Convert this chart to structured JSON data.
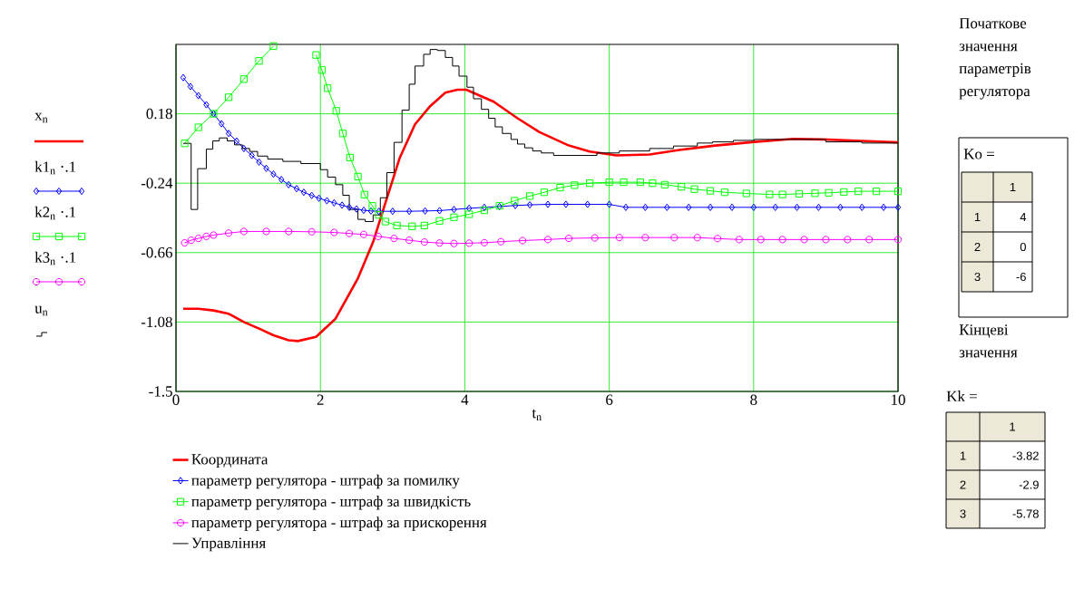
{
  "chart_data": [
    {
      "type": "line",
      "xlabel": "t$_{n}$",
      "xlim": [
        0,
        10
      ],
      "ylim": [
        -1.5,
        0.6
      ],
      "xticks": [
        0,
        2,
        4,
        6,
        8,
        10
      ],
      "yticks": [
        -1.5,
        -1.08,
        -0.66,
        -0.24,
        0.18
      ],
      "grid": true,
      "legend": "bottom",
      "annotations": [
        "x$_{n}$",
        "k1$_{n}$ ·.1",
        "k2$_{n}$ ·.1",
        "k3$_{n}$ ·.1",
        "u$_{n}$"
      ],
      "series": [
        {
          "name": "Координата",
          "color": "#ff0000",
          "marker": "none",
          "x": [
            0.1,
            0.31,
            0.52,
            0.73,
            0.94,
            1.15,
            1.35,
            1.56,
            1.69,
            1.94,
            2.21,
            2.52,
            2.73,
            2.94,
            3.1,
            3.31,
            3.52,
            3.73,
            3.9,
            4.02,
            4.4,
            4.73,
            5.03,
            5.44,
            5.73,
            6.1,
            6.56,
            6.97,
            7.47,
            8.01,
            8.55,
            8.96,
            9.5,
            10
          ],
          "values": [
            -1.0,
            -1.0,
            -1.01,
            -1.03,
            -1.08,
            -1.12,
            -1.16,
            -1.19,
            -1.195,
            -1.17,
            -1.06,
            -0.815,
            -0.596,
            -0.304,
            -0.085,
            0.116,
            0.226,
            0.308,
            0.326,
            0.326,
            0.253,
            0.153,
            0.07,
            -0.012,
            -0.048,
            -0.072,
            -0.066,
            -0.039,
            -0.012,
            0.01,
            0.028,
            0.025,
            0.016,
            0.007
          ]
        },
        {
          "name": "параметр регулятора - штраф за помилку",
          "color": "#0000ff",
          "marker": "diamond",
          "x": [
            0.1,
            0.2,
            0.31,
            0.42,
            0.52,
            0.63,
            0.73,
            0.84,
            0.94,
            1.05,
            1.15,
            1.25,
            1.35,
            1.46,
            1.56,
            1.67,
            1.77,
            1.88,
            1.98,
            2.09,
            2.19,
            2.3,
            2.4,
            2.5,
            2.6,
            2.7,
            2.81,
            3.0,
            3.23,
            3.45,
            3.65,
            3.85,
            4.06,
            4.27,
            4.48,
            4.7,
            4.9,
            5.15,
            5.4,
            5.7,
            6.0,
            6.23,
            6.5,
            6.8,
            7.1,
            7.4,
            7.7,
            8.0,
            8.3,
            8.6,
            8.9,
            9.2,
            9.5,
            9.8,
            10
          ],
          "values": [
            0.399,
            0.345,
            0.29,
            0.235,
            0.18,
            0.12,
            0.061,
            0.015,
            -0.03,
            -0.072,
            -0.112,
            -0.15,
            -0.185,
            -0.218,
            -0.249,
            -0.273,
            -0.295,
            -0.314,
            -0.331,
            -0.346,
            -0.359,
            -0.373,
            -0.386,
            -0.396,
            -0.404,
            -0.408,
            -0.41,
            -0.41,
            -0.41,
            -0.408,
            -0.406,
            -0.399,
            -0.392,
            -0.386,
            -0.381,
            -0.375,
            -0.371,
            -0.368,
            -0.368,
            -0.368,
            -0.368,
            -0.386,
            -0.386,
            -0.386,
            -0.386,
            -0.386,
            -0.386,
            -0.386,
            -0.386,
            -0.386,
            -0.386,
            -0.386,
            -0.386,
            -0.386,
            -0.386
          ]
        },
        {
          "name": "параметр регулятора - штраф за швидкість",
          "color": "#00ff00",
          "marker": "square",
          "x": [
            0.12,
            0.31,
            0.52,
            0.73,
            0.94,
            1.15,
            1.35,
            1.38,
            1.6,
            1.75,
            1.94,
            2.02,
            2.1,
            2.22,
            2.31,
            2.41,
            2.52,
            2.61,
            2.72,
            2.81,
            2.9,
            3.06,
            3.27,
            3.44,
            3.65,
            3.85,
            4.06,
            4.27,
            4.48,
            4.69,
            4.9,
            5.1,
            5.32,
            5.52,
            5.73,
            6.0,
            6.2,
            6.43,
            6.6,
            6.77,
            7.0,
            7.18,
            7.4,
            7.6,
            7.9,
            8.22,
            8.4,
            8.63,
            8.85,
            9.04,
            9.25,
            9.45,
            9.7,
            10
          ],
          "values": [
            0.001,
            0.098,
            0.18,
            0.28,
            0.39,
            0.5,
            0.59,
            null,
            null,
            null,
            0.536,
            0.445,
            0.335,
            0.198,
            0.061,
            -0.085,
            -0.2,
            -0.309,
            -0.377,
            -0.432,
            -0.472,
            -0.496,
            -0.501,
            -0.496,
            -0.468,
            -0.446,
            -0.428,
            -0.404,
            -0.377,
            -0.346,
            -0.318,
            -0.295,
            -0.267,
            -0.252,
            -0.24,
            -0.234,
            -0.234,
            -0.234,
            -0.24,
            -0.249,
            -0.262,
            -0.276,
            -0.286,
            -0.295,
            -0.302,
            -0.308,
            -0.308,
            -0.304,
            -0.301,
            -0.298,
            -0.293,
            -0.289,
            -0.289,
            -0.289
          ]
        },
        {
          "name": "параметр регулятора - штраф за прискорення",
          "color": "#ff00ff",
          "marker": "circle",
          "x": [
            0.12,
            0.21,
            0.31,
            0.42,
            0.52,
            0.73,
            0.94,
            1.25,
            1.56,
            1.88,
            2.19,
            2.4,
            2.6,
            2.8,
            3.02,
            3.23,
            3.44,
            3.65,
            3.85,
            4.06,
            4.27,
            4.5,
            4.8,
            5.15,
            5.44,
            5.8,
            6.14,
            6.5,
            6.9,
            7.22,
            7.5,
            7.8,
            8.1,
            8.4,
            8.7,
            9.0,
            9.3,
            9.6,
            10
          ],
          "values": [
            -0.601,
            -0.585,
            -0.574,
            -0.562,
            -0.554,
            -0.542,
            -0.532,
            -0.532,
            -0.532,
            -0.534,
            -0.538,
            -0.544,
            -0.55,
            -0.562,
            -0.574,
            -0.585,
            -0.596,
            -0.602,
            -0.605,
            -0.603,
            -0.6,
            -0.594,
            -0.587,
            -0.581,
            -0.574,
            -0.571,
            -0.569,
            -0.569,
            -0.569,
            -0.569,
            -0.575,
            -0.581,
            -0.581,
            -0.581,
            -0.581,
            -0.581,
            -0.581,
            -0.581,
            -0.581
          ]
        },
        {
          "name": "Управління",
          "color": "#000000",
          "type": "step",
          "marker": "none",
          "x": [
            0.1,
            0.21,
            0.3,
            0.42,
            0.51,
            0.6,
            0.71,
            0.81,
            0.92,
            1.02,
            1.13,
            1.27,
            1.48,
            1.73,
            2.0,
            2.1,
            2.21,
            2.31,
            2.4,
            2.52,
            2.62,
            2.73,
            2.83,
            2.92,
            3.02,
            3.13,
            3.23,
            3.31,
            3.43,
            3.52,
            3.62,
            3.73,
            3.83,
            3.92,
            4.03,
            4.12,
            4.23,
            4.33,
            4.42,
            4.52,
            4.64,
            4.73,
            4.83,
            4.94,
            5.06,
            5.23,
            5.83,
            6.14,
            6.56,
            6.89,
            7.22,
            7.43,
            7.72,
            8.01,
            9.0,
            9.5,
            10
          ],
          "values": [
            0.001,
            -0.399,
            -0.152,
            -0.034,
            0.016,
            0.034,
            0.016,
            -0.008,
            -0.03,
            -0.048,
            -0.076,
            -0.094,
            -0.108,
            -0.121,
            -0.158,
            -0.203,
            -0.249,
            -0.313,
            -0.399,
            -0.459,
            -0.472,
            -0.432,
            -0.328,
            -0.176,
            0.007,
            0.202,
            0.359,
            0.469,
            0.54,
            0.569,
            0.563,
            0.521,
            0.469,
            0.408,
            0.341,
            0.271,
            0.207,
            0.153,
            0.101,
            0.061,
            0.025,
            -0.003,
            -0.026,
            -0.045,
            -0.057,
            -0.072,
            -0.057,
            -0.045,
            -0.03,
            -0.015,
            0.003,
            0.01,
            0.019,
            0.025,
            0.01,
            0.003,
            0.003
          ]
        }
      ]
    },
    {
      "type": "other",
      "title": "Початкове значення параметрів регулятора",
      "subtitle": "Ko  =",
      "categories": [
        "1",
        "2",
        "3"
      ],
      "series": [
        {
          "name": "1",
          "values": [
            4,
            0,
            -6
          ]
        }
      ],
      "data_labels": true
    },
    {
      "type": "other",
      "title": "Кінцеві значення",
      "subtitle": "Kk  =",
      "categories": [
        "1",
        "2",
        "3"
      ],
      "series": [
        {
          "name": "1",
          "values": [
            -3.82,
            -2.9,
            -5.78
          ]
        }
      ],
      "data_labels": true
    }
  ]
}
